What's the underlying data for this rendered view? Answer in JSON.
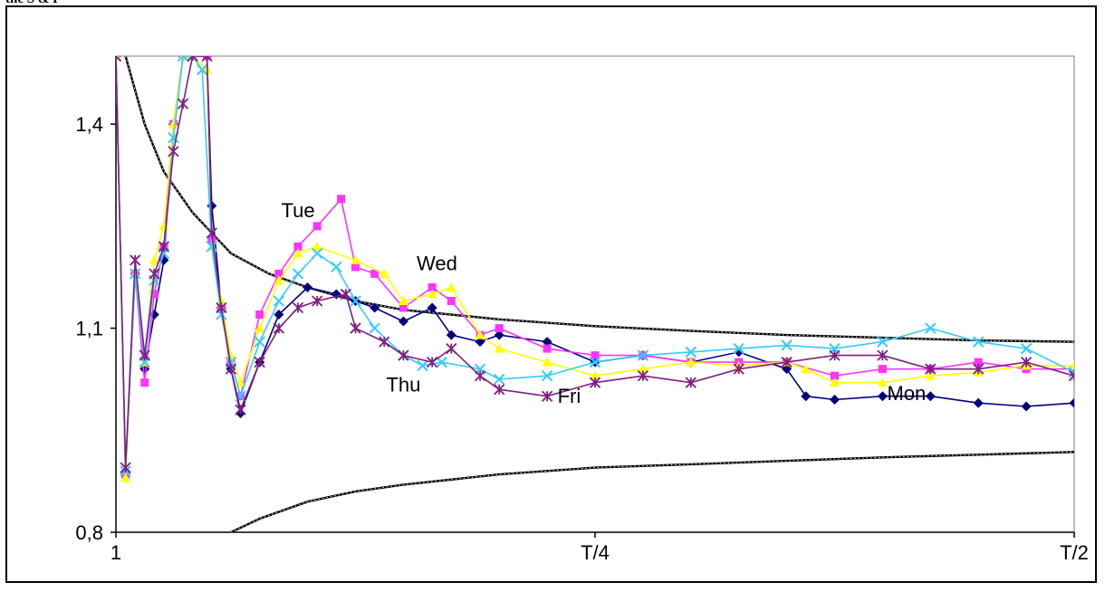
{
  "crop_text": "the S & P",
  "chart_data": {
    "type": "line",
    "title": "",
    "xlabel": "",
    "ylabel": "",
    "ylim": [
      0.8,
      1.5
    ],
    "xlim": [
      0,
      1
    ],
    "grid": false,
    "legend": "none",
    "x_ticks": [
      {
        "label": "1",
        "value": 0
      },
      {
        "label": "T/4",
        "value": 0.5
      },
      {
        "label": "T/2",
        "value": 1
      }
    ],
    "y_ticks": [
      {
        "label": "0,8",
        "value": 0.8
      },
      {
        "label": "1,1",
        "value": 1.1
      },
      {
        "label": "1,4",
        "value": 1.4
      }
    ],
    "annotations": [
      {
        "text": "Tue",
        "x": 0.19,
        "y": 1.263
      },
      {
        "text": "Wed",
        "x": 0.335,
        "y": 1.185
      },
      {
        "text": "Thu",
        "x": 0.3,
        "y": 1.007
      },
      {
        "text": "Fri",
        "x": 0.473,
        "y": 0.99
      },
      {
        "text": "Mon",
        "x": 0.825,
        "y": 0.994
      }
    ],
    "bands": [
      {
        "name": "upper",
        "x": [
          0.01,
          0.03,
          0.05,
          0.08,
          0.12,
          0.16,
          0.2,
          0.25,
          0.3,
          0.4,
          0.5,
          0.6,
          0.7,
          0.8,
          0.9,
          1.0
        ],
        "y": [
          1.5,
          1.4,
          1.33,
          1.27,
          1.21,
          1.18,
          1.16,
          1.14,
          1.127,
          1.113,
          1.103,
          1.096,
          1.09,
          1.086,
          1.082,
          1.08
        ]
      },
      {
        "name": "lower",
        "x": [
          0.12,
          0.15,
          0.2,
          0.25,
          0.3,
          0.4,
          0.5,
          0.6,
          0.7,
          0.8,
          0.9,
          1.0
        ],
        "y": [
          0.8,
          0.82,
          0.845,
          0.86,
          0.87,
          0.885,
          0.895,
          0.9,
          0.905,
          0.91,
          0.914,
          0.918
        ]
      }
    ],
    "series": [
      {
        "color": "#000080",
        "marker": "diamond",
        "x": [
          0,
          0.01,
          0.02,
          0.03,
          0.04,
          0.05,
          0.06,
          0.07,
          0.08,
          0.095,
          0.1,
          0.11,
          0.12,
          0.13,
          0.15,
          0.17,
          0.2,
          0.23,
          0.25,
          0.27,
          0.3,
          0.33,
          0.35,
          0.38,
          0.4,
          0.45,
          0.5,
          0.55,
          0.6,
          0.65,
          0.7,
          0.72,
          0.75,
          0.8,
          0.85,
          0.9,
          0.95,
          1.0
        ],
        "y": [
          1.5,
          0.887,
          1.18,
          1.04,
          1.12,
          1.2,
          1.4,
          1.5,
          1.5,
          1.5,
          1.28,
          1.13,
          1.04,
          0.975,
          1.05,
          1.12,
          1.16,
          1.15,
          1.14,
          1.13,
          1.11,
          1.13,
          1.09,
          1.08,
          1.09,
          1.08,
          1.05,
          1.06,
          1.05,
          1.065,
          1.04,
          1.0,
          0.995,
          1.0,
          1.0,
          0.99,
          0.985,
          0.99
        ]
      },
      {
        "color": "#ff33ff",
        "marker": "square",
        "x": [
          0,
          0.01,
          0.02,
          0.03,
          0.04,
          0.05,
          0.06,
          0.07,
          0.08,
          0.095,
          0.1,
          0.11,
          0.12,
          0.13,
          0.15,
          0.17,
          0.19,
          0.21,
          0.235,
          0.25,
          0.27,
          0.3,
          0.33,
          0.35,
          0.38,
          0.4,
          0.45,
          0.5,
          0.55,
          0.6,
          0.65,
          0.7,
          0.75,
          0.8,
          0.85,
          0.9,
          0.95,
          1.0
        ],
        "y": [
          1.5,
          0.885,
          1.18,
          1.02,
          1.15,
          1.22,
          1.4,
          1.5,
          1.5,
          1.5,
          1.23,
          1.13,
          1.05,
          1.0,
          1.12,
          1.18,
          1.22,
          1.25,
          1.29,
          1.19,
          1.18,
          1.13,
          1.16,
          1.14,
          1.09,
          1.1,
          1.07,
          1.06,
          1.06,
          1.05,
          1.05,
          1.05,
          1.03,
          1.04,
          1.04,
          1.05,
          1.04,
          1.04
        ]
      },
      {
        "color": "#ffff00",
        "marker": "triangle",
        "x": [
          0,
          0.01,
          0.02,
          0.03,
          0.04,
          0.05,
          0.06,
          0.07,
          0.08,
          0.095,
          0.1,
          0.11,
          0.12,
          0.13,
          0.15,
          0.17,
          0.19,
          0.21,
          0.25,
          0.28,
          0.3,
          0.33,
          0.35,
          0.38,
          0.4,
          0.45,
          0.5,
          0.55,
          0.6,
          0.65,
          0.7,
          0.72,
          0.75,
          0.8,
          0.85,
          0.9,
          0.95,
          1.0
        ],
        "y": [
          1.5,
          0.88,
          1.18,
          1.05,
          1.2,
          1.25,
          1.4,
          1.5,
          1.5,
          1.48,
          1.22,
          1.14,
          1.06,
          1.02,
          1.1,
          1.17,
          1.21,
          1.22,
          1.2,
          1.18,
          1.14,
          1.15,
          1.16,
          1.09,
          1.07,
          1.05,
          1.03,
          1.04,
          1.05,
          1.045,
          1.05,
          1.04,
          1.02,
          1.02,
          1.03,
          1.035,
          1.045,
          1.045
        ]
      },
      {
        "color": "#33ccff",
        "marker": "x",
        "x": [
          0,
          0.01,
          0.02,
          0.03,
          0.04,
          0.05,
          0.06,
          0.07,
          0.08,
          0.09,
          0.1,
          0.11,
          0.12,
          0.13,
          0.15,
          0.17,
          0.19,
          0.21,
          0.23,
          0.25,
          0.27,
          0.3,
          0.32,
          0.34,
          0.38,
          0.4,
          0.45,
          0.5,
          0.55,
          0.6,
          0.65,
          0.7,
          0.75,
          0.8,
          0.85,
          0.9,
          0.95,
          1.0
        ],
        "y": [
          1.5,
          0.89,
          1.18,
          1.05,
          1.17,
          1.21,
          1.38,
          1.5,
          1.5,
          1.48,
          1.22,
          1.12,
          1.05,
          1.0,
          1.08,
          1.14,
          1.18,
          1.21,
          1.19,
          1.14,
          1.1,
          1.06,
          1.045,
          1.05,
          1.04,
          1.025,
          1.03,
          1.05,
          1.06,
          1.065,
          1.07,
          1.075,
          1.07,
          1.08,
          1.1,
          1.08,
          1.07,
          1.035
        ]
      },
      {
        "color": "#7f1f7f",
        "marker": "star",
        "x": [
          0,
          0.01,
          0.02,
          0.03,
          0.04,
          0.05,
          0.06,
          0.07,
          0.08,
          0.095,
          0.1,
          0.11,
          0.12,
          0.13,
          0.15,
          0.17,
          0.19,
          0.21,
          0.24,
          0.25,
          0.28,
          0.3,
          0.33,
          0.35,
          0.38,
          0.4,
          0.45,
          0.5,
          0.55,
          0.6,
          0.65,
          0.7,
          0.75,
          0.8,
          0.85,
          0.9,
          0.95,
          1.0
        ],
        "y": [
          1.5,
          0.895,
          1.2,
          1.06,
          1.18,
          1.22,
          1.36,
          1.43,
          1.5,
          1.5,
          1.24,
          1.13,
          1.04,
          0.98,
          1.05,
          1.1,
          1.13,
          1.14,
          1.15,
          1.1,
          1.08,
          1.06,
          1.05,
          1.07,
          1.03,
          1.01,
          1.0,
          1.02,
          1.03,
          1.02,
          1.04,
          1.05,
          1.06,
          1.06,
          1.04,
          1.04,
          1.05,
          1.03
        ]
      }
    ]
  }
}
